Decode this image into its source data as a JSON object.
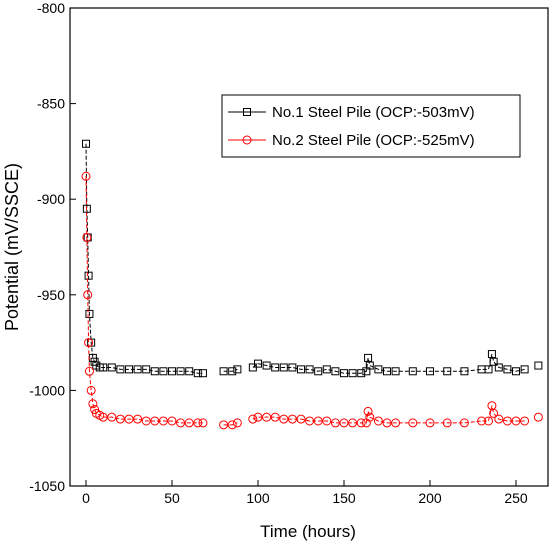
{
  "chart_data": {
    "type": "line",
    "x_label": "Time (hours)",
    "y_label": "Potential (mV/SSCE)",
    "x": [
      0,
      0.5,
      1,
      1.5,
      2,
      3,
      4,
      5,
      6,
      8,
      10,
      15,
      20,
      25,
      30,
      35,
      40,
      45,
      50,
      55,
      60,
      65,
      68,
      75,
      80,
      85,
      88,
      93,
      97,
      100,
      105,
      110,
      115,
      120,
      125,
      130,
      135,
      140,
      145,
      150,
      155,
      160,
      163,
      164,
      165,
      170,
      175,
      180,
      190,
      200,
      210,
      220,
      230,
      234,
      236,
      237,
      240,
      245,
      250,
      255,
      258,
      263
    ],
    "series": [
      {
        "name": "No.1 Steel Pile (OCP:-503mV)",
        "color": "#000000",
        "marker": "square",
        "values": [
          -871,
          -905,
          -920,
          -940,
          -960,
          -975,
          -983,
          -985,
          -987,
          -988,
          -988,
          -988,
          -989,
          -989,
          -989,
          -989,
          -990,
          -990,
          -990,
          -990,
          -990,
          -991,
          -991,
          null,
          -990,
          -990,
          -989,
          null,
          -988,
          -986,
          -987,
          -988,
          -988,
          -988,
          -989,
          -989,
          -990,
          -989,
          -990,
          -991,
          -991,
          -991,
          -990,
          -983,
          -987,
          -989,
          -990,
          -990,
          -990,
          -990,
          -990,
          -990,
          -989,
          -989,
          -981,
          -985,
          -988,
          -989,
          -990,
          -989,
          null,
          -987
        ]
      },
      {
        "name": "No.2 Steel Pile (OCP:-525mV)",
        "color": "#ff0000",
        "marker": "circle",
        "values": [
          -888,
          -920,
          -950,
          -975,
          -990,
          -1000,
          -1007,
          -1010,
          -1012,
          -1013,
          -1014,
          -1014,
          -1015,
          -1015,
          -1015,
          -1016,
          -1016,
          -1016,
          -1016,
          -1017,
          -1017,
          -1017,
          -1017,
          null,
          -1018,
          -1018,
          -1017,
          null,
          -1015,
          -1014,
          -1014,
          -1014,
          -1015,
          -1015,
          -1015,
          -1016,
          -1016,
          -1016,
          -1017,
          -1017,
          -1017,
          -1017,
          -1017,
          -1011,
          -1014,
          -1016,
          -1017,
          -1017,
          -1017,
          -1017,
          -1017,
          -1017,
          -1016,
          -1016,
          -1008,
          -1012,
          -1015,
          -1016,
          -1016,
          -1016,
          null,
          -1014
        ]
      }
    ],
    "xlim": [
      -9.3,
      268.6
    ],
    "xticks": [
      0,
      50,
      100,
      150,
      200,
      250
    ],
    "ylim": [
      -1050,
      -800
    ],
    "yticks": [
      -1050,
      -1000,
      -950,
      -900,
      -850,
      -800
    ],
    "grid": false,
    "legend": "upper right"
  }
}
